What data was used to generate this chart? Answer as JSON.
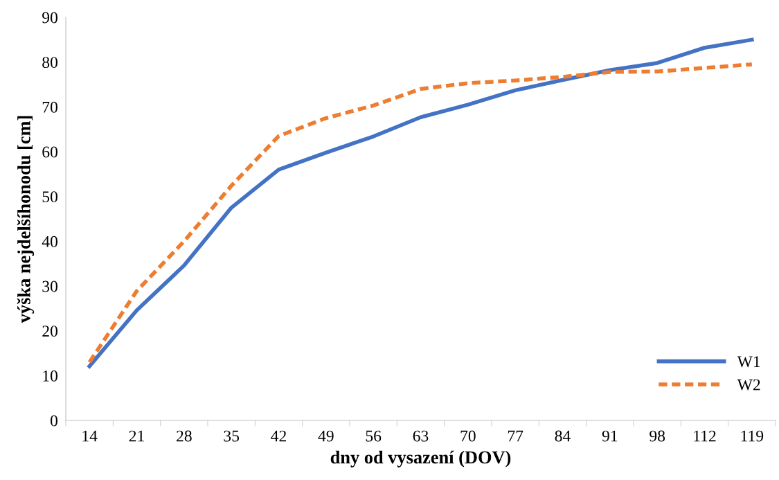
{
  "chart_data": {
    "type": "line",
    "xlabel": "dny od vysazení (DOV)",
    "ylabel": "výška nejdelšíhonodu [cm]",
    "categories": [
      "14",
      "21",
      "28",
      "35",
      "42",
      "49",
      "56",
      "63",
      "70",
      "77",
      "84",
      "91",
      "98",
      "112",
      "119"
    ],
    "series": [
      {
        "name": "W1",
        "color": "#4472c4",
        "line_style": "solid",
        "values": [
          12.1,
          24.6,
          34.6,
          47.5,
          56,
          59.8,
          63.4,
          67.7,
          70.5,
          73.7,
          76,
          78.2,
          79.8,
          83.2,
          85
        ]
      },
      {
        "name": "W2",
        "color": "#ed7d31",
        "line_style": "dashed",
        "values": [
          13,
          28.9,
          40,
          52.4,
          63.5,
          67.5,
          70.3,
          74,
          75.3,
          75.9,
          76.7,
          77.8,
          77.9,
          78.7,
          79.5
        ]
      }
    ],
    "ylim": [
      0,
      90
    ],
    "yticks": [
      0,
      10,
      20,
      30,
      40,
      50,
      60,
      70,
      80,
      90
    ],
    "grid": false,
    "legend": "bottom right",
    "marker": "none"
  }
}
